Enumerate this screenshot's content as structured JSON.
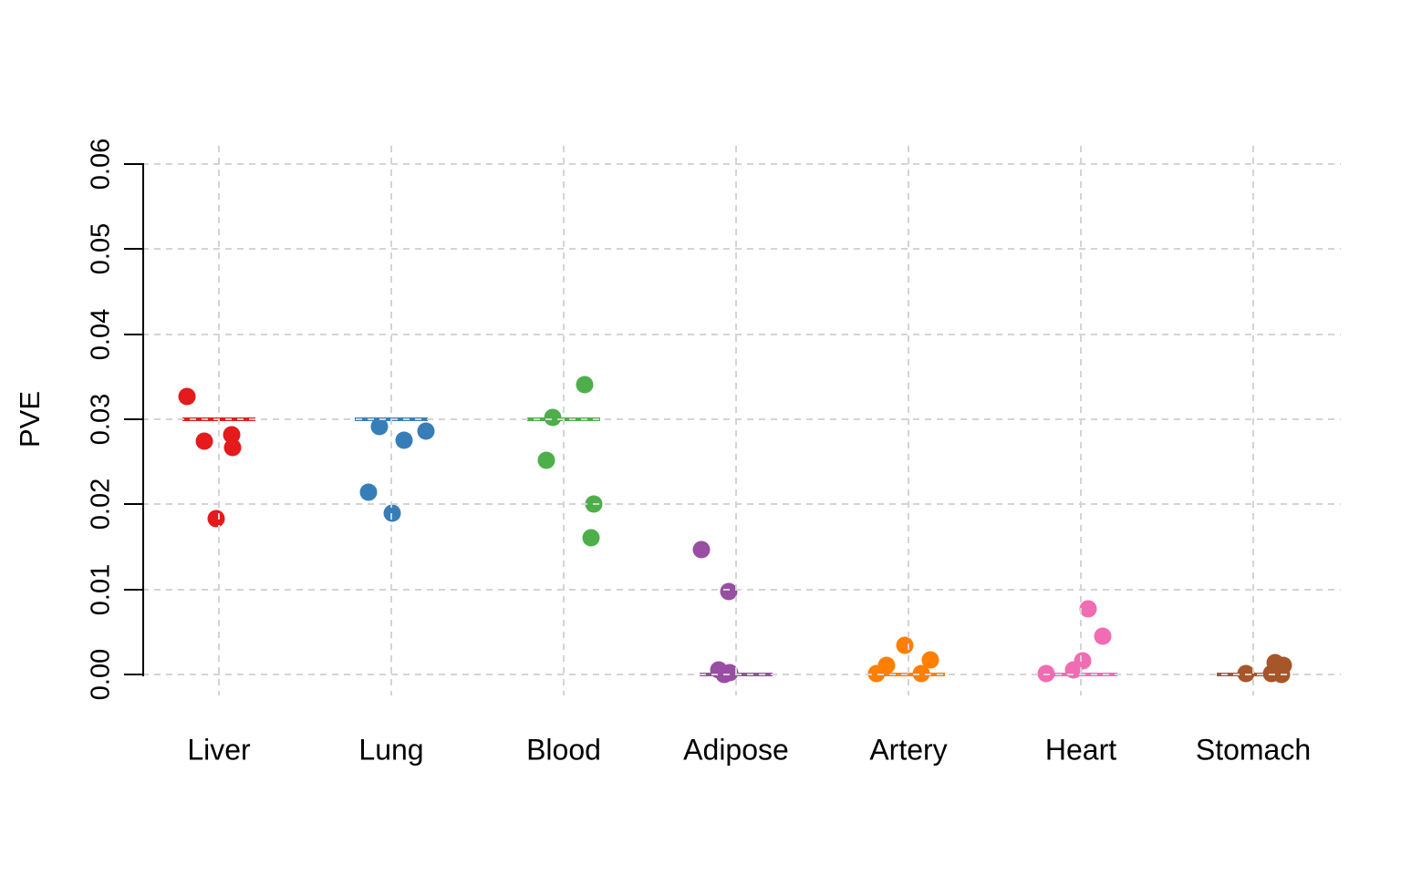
{
  "chart_data": {
    "type": "scatter",
    "subtype": "jittered-strip-plot",
    "title": "",
    "xlabel": "",
    "ylabel": "PVE",
    "ylim": [
      0.0,
      0.06
    ],
    "ytick_labels": [
      "0.00",
      "0.01",
      "0.02",
      "0.03",
      "0.04",
      "0.05",
      "0.06"
    ],
    "ytick_values": [
      0.0,
      0.01,
      0.02,
      0.03,
      0.04,
      0.05,
      0.06
    ],
    "categories": [
      "Liver",
      "Lung",
      "Blood",
      "Adipose",
      "Artery",
      "Heart",
      "Stomach"
    ],
    "grid": "dashed light-gray; horizontal lines at every 0.01, vertical line at each category center",
    "legend": "none",
    "axis_color": "#000000",
    "grid_color": "#d4d4d4",
    "groups": [
      {
        "category": "Liver",
        "color": "#e41a1c",
        "reference_line": 0.03,
        "points": [
          {
            "value": 0.0327,
            "dx": -35
          },
          {
            "value": 0.0282,
            "dx": 14
          },
          {
            "value": 0.0274,
            "dx": -16
          },
          {
            "value": 0.0267,
            "dx": 15
          },
          {
            "value": 0.0183,
            "dx": -3
          }
        ]
      },
      {
        "category": "Lung",
        "color": "#377eb8",
        "reference_line": 0.03,
        "points": [
          {
            "value": 0.0291,
            "dx": -13
          },
          {
            "value": 0.0286,
            "dx": 38
          },
          {
            "value": 0.0275,
            "dx": 14
          },
          {
            "value": 0.0214,
            "dx": -25
          },
          {
            "value": 0.019,
            "dx": 1
          }
        ]
      },
      {
        "category": "Blood",
        "color": "#4daf4a",
        "reference_line": 0.03,
        "points": [
          {
            "value": 0.0341,
            "dx": 23
          },
          {
            "value": 0.0302,
            "dx": -12
          },
          {
            "value": 0.0252,
            "dx": -19
          },
          {
            "value": 0.02,
            "dx": 33
          },
          {
            "value": 0.0161,
            "dx": 30
          }
        ]
      },
      {
        "category": "Adipose",
        "color": "#984ea3",
        "reference_line": 0.0,
        "points": [
          {
            "value": 0.0147,
            "dx": -38
          },
          {
            "value": 0.0098,
            "dx": -8
          },
          {
            "value": 0.0005,
            "dx": -19
          },
          {
            "value": 0.0002,
            "dx": -7
          },
          {
            "value": 0.0,
            "dx": -13
          }
        ]
      },
      {
        "category": "Artery",
        "color": "#ff7f00",
        "reference_line": 0.0,
        "points": [
          {
            "value": 0.0034,
            "dx": -4
          },
          {
            "value": 0.0017,
            "dx": 24
          },
          {
            "value": 0.0011,
            "dx": -24
          },
          {
            "value": 0.0001,
            "dx": -35
          },
          {
            "value": 0.0001,
            "dx": 14
          }
        ]
      },
      {
        "category": "Heart",
        "color": "#f16cb2",
        "reference_line": 0.0,
        "points": [
          {
            "value": 0.0077,
            "dx": 8
          },
          {
            "value": 0.0045,
            "dx": 24
          },
          {
            "value": 0.0016,
            "dx": 2
          },
          {
            "value": 0.0005,
            "dx": -8
          },
          {
            "value": 0.0001,
            "dx": -38
          }
        ]
      },
      {
        "category": "Stomach",
        "color": "#a65628",
        "reference_line": 0.0,
        "points": [
          {
            "value": 0.0014,
            "dx": 24
          },
          {
            "value": 0.0011,
            "dx": 33
          },
          {
            "value": 0.0001,
            "dx": -8
          },
          {
            "value": 0.0001,
            "dx": 20
          },
          {
            "value": 0.0,
            "dx": 31
          }
        ]
      }
    ]
  }
}
